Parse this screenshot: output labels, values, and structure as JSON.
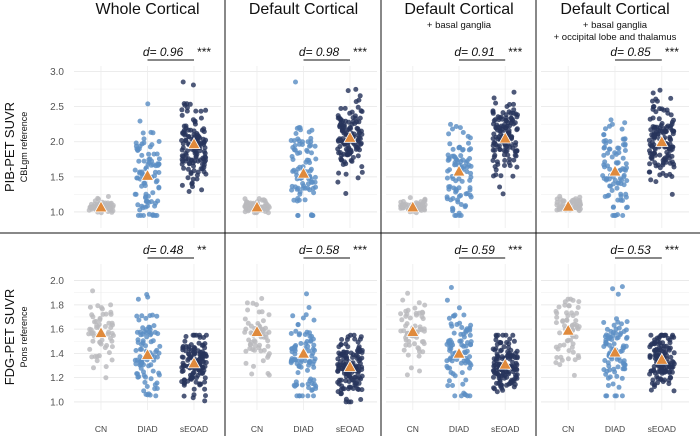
{
  "chart_data": {
    "type": "scatter",
    "groups": [
      "CN",
      "DIAD",
      "sEOAD"
    ],
    "group_colors": {
      "CN": "#b9b9bd",
      "DIAD": "#5b8fc4",
      "sEOAD": "#27355c"
    },
    "mean_marker_color": "#e08a3c",
    "columns": [
      {
        "title": "Whole Cortical",
        "subtitle": []
      },
      {
        "title": "Default Cortical",
        "subtitle": []
      },
      {
        "title": "Default Cortical",
        "subtitle": [
          "+ basal ganglia"
        ]
      },
      {
        "title": "Default Cortical",
        "subtitle": [
          "+ basal ganglia",
          "+ occipital lobe and thalamus"
        ]
      }
    ],
    "rows": [
      {
        "label": "PIB-PET SUVR",
        "sublabel": "CBLgm reference",
        "ylim": [
          0.8,
          3.05
        ],
        "yticks": [
          1.0,
          1.5,
          2.0,
          2.5,
          3.0
        ],
        "tick_labels": [
          "1.0",
          "1.5",
          "2.0",
          "2.5",
          "3.0"
        ],
        "panels": [
          {
            "d_text": "d= 0.96",
            "stars": "***",
            "means": {
              "CN": 1.07,
              "DIAD": 1.52,
              "sEOAD": 1.97
            }
          },
          {
            "d_text": "d= 0.98",
            "stars": "***",
            "means": {
              "CN": 1.07,
              "DIAD": 1.55,
              "sEOAD": 2.06
            }
          },
          {
            "d_text": "d= 0.91",
            "stars": "***",
            "means": {
              "CN": 1.07,
              "DIAD": 1.58,
              "sEOAD": 2.05
            }
          },
          {
            "d_text": "d= 0.85",
            "stars": "***",
            "means": {
              "CN": 1.08,
              "DIAD": 1.58,
              "sEOAD": 2.0
            }
          }
        ]
      },
      {
        "label": "FDG-PET SUVR",
        "sublabel": "Pons reference",
        "ylim": [
          0.95,
          2.12
        ],
        "yticks": [
          1.0,
          1.2,
          1.4,
          1.6,
          1.8,
          2.0
        ],
        "tick_labels": [
          "1.0",
          "1.2",
          "1.4",
          "1.6",
          "1.8",
          "2.0"
        ],
        "panels": [
          {
            "d_text": "d= 0.48",
            "stars": "**",
            "means": {
              "CN": 1.57,
              "DIAD": 1.39,
              "sEOAD": 1.32
            }
          },
          {
            "d_text": "d= 0.58",
            "stars": "***",
            "means": {
              "CN": 1.58,
              "DIAD": 1.4,
              "sEOAD": 1.29
            }
          },
          {
            "d_text": "d= 0.59",
            "stars": "***",
            "means": {
              "CN": 1.58,
              "DIAD": 1.4,
              "sEOAD": 1.31
            }
          },
          {
            "d_text": "d= 0.53",
            "stars": "***",
            "means": {
              "CN": 1.59,
              "DIAD": 1.41,
              "sEOAD": 1.35
            }
          }
        ]
      }
    ]
  }
}
